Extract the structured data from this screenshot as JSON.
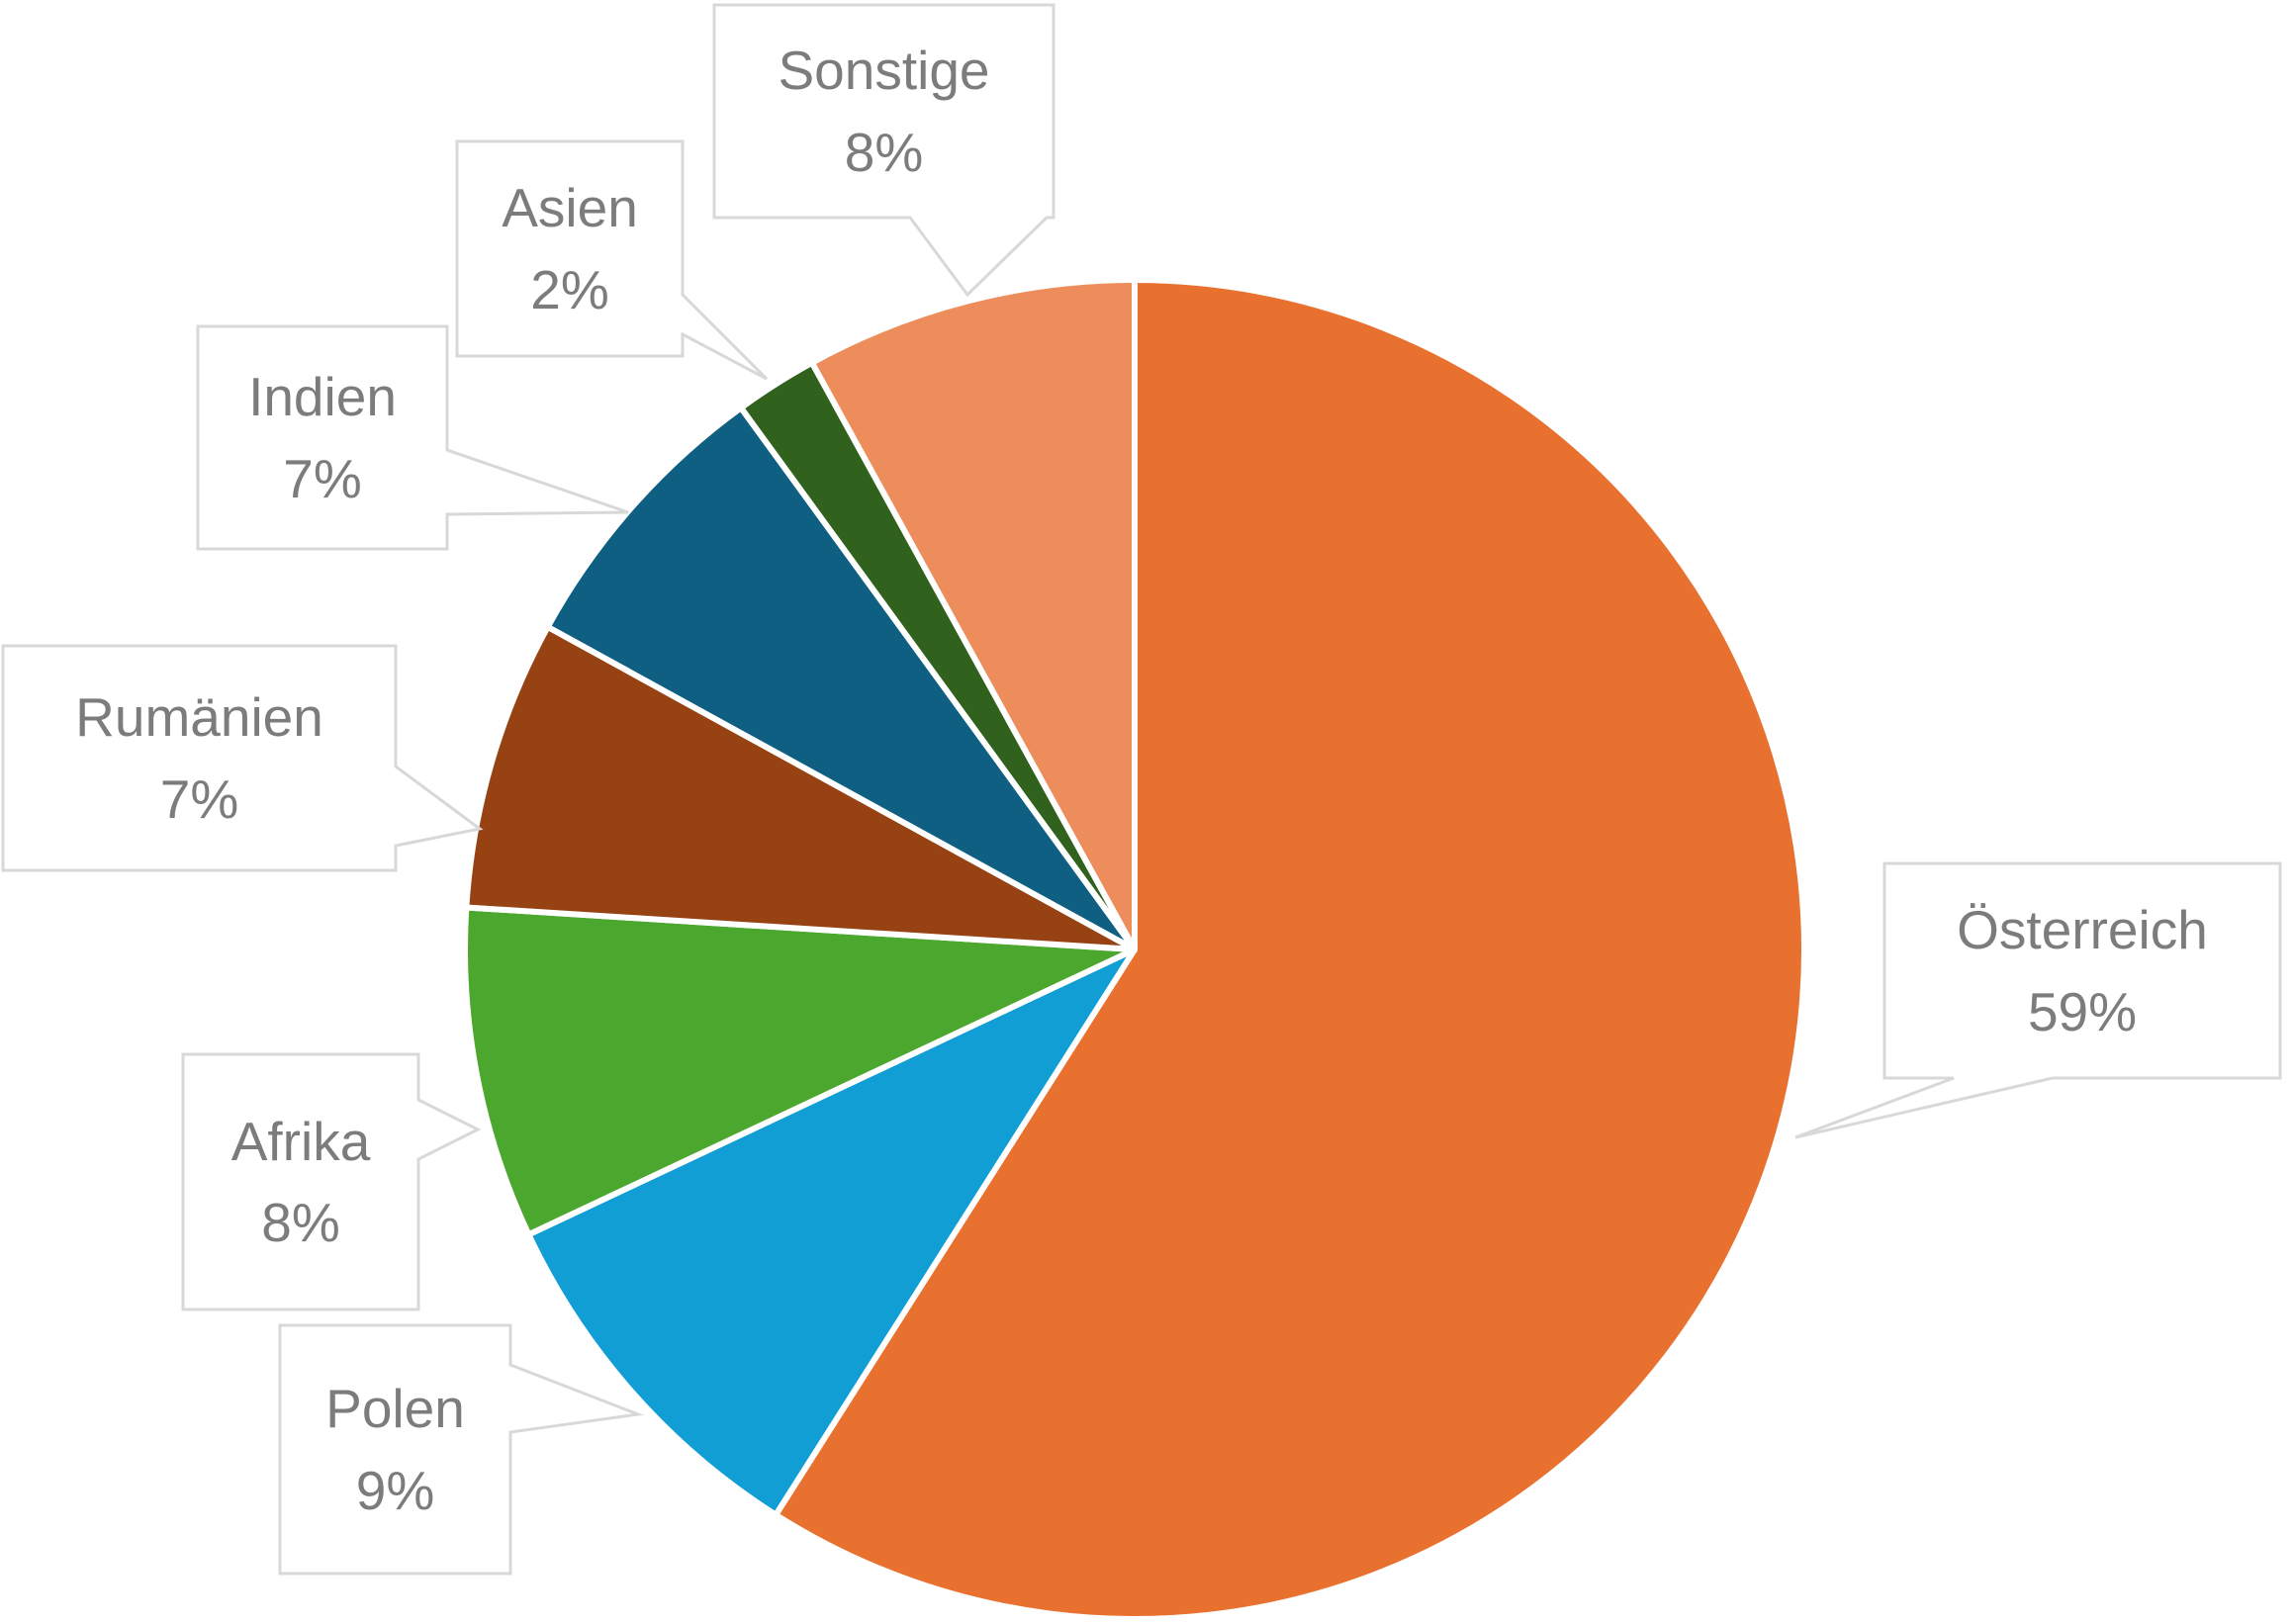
{
  "chart_data": {
    "type": "pie",
    "title": "",
    "categories": [
      "Österreich",
      "Polen",
      "Afrika",
      "Rumänien",
      "Indien",
      "Asien",
      "Sonstige"
    ],
    "values": [
      59,
      9,
      8,
      7,
      7,
      2,
      8
    ],
    "unit": "%",
    "start_angle_deg": 0,
    "direction": "clockwise",
    "legend_position": "none",
    "colors": [
      "#E9712F",
      "#119ED5",
      "#4CA72E",
      "#974212",
      "#0E5F82",
      "#30621D",
      "#EE8D5C"
    ],
    "slice_border_color": "#FFFFFF",
    "callout_style": {
      "box_fill": "#FFFFFF",
      "box_border_color": "#D8D8D8",
      "text_color": "#7C7C7C"
    },
    "callouts": [
      {
        "name": "Österreich",
        "value_text": "59%"
      },
      {
        "name": "Polen",
        "value_text": "9%"
      },
      {
        "name": "Afrika",
        "value_text": "8%"
      },
      {
        "name": "Rumänien",
        "value_text": "7%"
      },
      {
        "name": "Indien",
        "value_text": "7%"
      },
      {
        "name": "Asien",
        "value_text": "2%"
      },
      {
        "name": "Sonstige",
        "value_text": "8%"
      }
    ]
  }
}
